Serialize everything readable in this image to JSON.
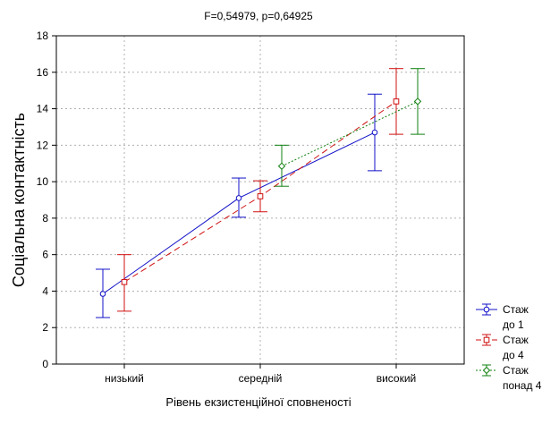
{
  "chart_data": {
    "type": "line",
    "title": "F=0,54979, p=0,64925",
    "xlabel": "Рівень екзистенційної сповненості",
    "ylabel": "Соціальна контактність",
    "categories": [
      "низький",
      "середній",
      "високий"
    ],
    "ylim": [
      0,
      18
    ],
    "yticks": [
      0,
      2,
      4,
      6,
      8,
      10,
      12,
      14,
      16,
      18
    ],
    "grid": true,
    "legend_position": "bottom-right",
    "series": [
      {
        "name": [
          "Стаж",
          "до 1"
        ],
        "color": "#1010c8",
        "line_style": "solid",
        "marker": "circle",
        "values": [
          3.85,
          9.1,
          12.7
        ],
        "ci_low": [
          2.55,
          8.05,
          10.6
        ],
        "ci_high": [
          5.2,
          10.2,
          14.8
        ]
      },
      {
        "name": [
          "Стаж",
          "до 4"
        ],
        "color": "#d01010",
        "line_style": "dashed",
        "marker": "square",
        "values": [
          4.5,
          9.2,
          14.4
        ],
        "ci_low": [
          2.9,
          8.35,
          12.6
        ],
        "ci_high": [
          6.0,
          10.05,
          16.2
        ]
      },
      {
        "name": [
          "Стаж",
          "понад 4"
        ],
        "color": "#108010",
        "line_style": "dotted",
        "marker": "diamond",
        "values": [
          null,
          10.85,
          14.4
        ],
        "ci_low": [
          null,
          9.75,
          12.6
        ],
        "ci_high": [
          null,
          12.0,
          16.2
        ]
      }
    ]
  }
}
